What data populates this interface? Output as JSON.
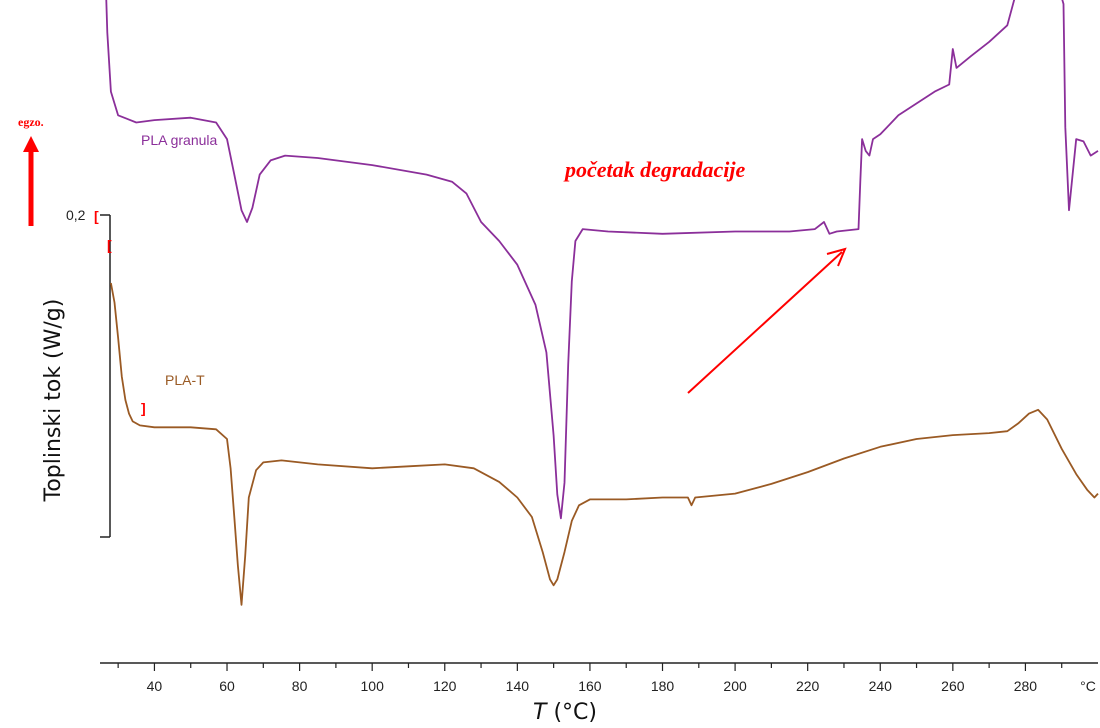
{
  "chart_data": {
    "type": "line",
    "xlabel_italic": "T",
    "xlabel_unit": " (°C)",
    "ylabel": "Toplinski tok (W/g)",
    "x_unit_tick": "°C",
    "xlim": [
      25,
      300
    ],
    "x_ticks": [
      40,
      60,
      80,
      100,
      120,
      140,
      160,
      180,
      200,
      220,
      240,
      260,
      280
    ],
    "scale_bar_label": "0,2",
    "exo_label": "egzo.",
    "annotation": "početak degradacije",
    "colors": {
      "PLA granula": "#8B2F9A",
      "PLA-T": "#9A5A24",
      "annotation": "#ff0000",
      "axis": "#222222"
    },
    "series": [
      {
        "name": "PLA granula",
        "points": [
          [
            25,
            1.7
          ],
          [
            26,
            1.3
          ],
          [
            27,
            0.8
          ],
          [
            28,
            0.55
          ],
          [
            30,
            0.45
          ],
          [
            35,
            0.42
          ],
          [
            40,
            0.43
          ],
          [
            50,
            0.44
          ],
          [
            57,
            0.42
          ],
          [
            60,
            0.35
          ],
          [
            62,
            0.2
          ],
          [
            64,
            0.05
          ],
          [
            65.5,
            0.0
          ],
          [
            67,
            0.06
          ],
          [
            69,
            0.2
          ],
          [
            72,
            0.26
          ],
          [
            76,
            0.28
          ],
          [
            85,
            0.27
          ],
          [
            100,
            0.24
          ],
          [
            115,
            0.2
          ],
          [
            122,
            0.17
          ],
          [
            126,
            0.12
          ],
          [
            130,
            0.0
          ],
          [
            135,
            -0.08
          ],
          [
            140,
            -0.18
          ],
          [
            145,
            -0.35
          ],
          [
            148,
            -0.55
          ],
          [
            150,
            -0.9
          ],
          [
            151,
            -1.15
          ],
          [
            152,
            -1.25
          ],
          [
            153,
            -1.1
          ],
          [
            154,
            -0.6
          ],
          [
            155,
            -0.25
          ],
          [
            156,
            -0.08
          ],
          [
            158,
            -0.03
          ],
          [
            165,
            -0.04
          ],
          [
            180,
            -0.05
          ],
          [
            200,
            -0.04
          ],
          [
            215,
            -0.04
          ],
          [
            222,
            -0.03
          ],
          [
            224.5,
            0.0
          ],
          [
            226,
            -0.05
          ],
          [
            228,
            -0.04
          ],
          [
            234,
            -0.03
          ],
          [
            234.5,
            0.17
          ],
          [
            235,
            0.35
          ],
          [
            236,
            0.3
          ],
          [
            237,
            0.28
          ],
          [
            238,
            0.35
          ],
          [
            240,
            0.37
          ],
          [
            245,
            0.45
          ],
          [
            255,
            0.55
          ],
          [
            259,
            0.58
          ],
          [
            260,
            0.73
          ],
          [
            261,
            0.65
          ],
          [
            265,
            0.7
          ],
          [
            270,
            0.76
          ],
          [
            275,
            0.83
          ],
          [
            278,
            1.0
          ],
          [
            281,
            1.18
          ],
          [
            283.5,
            1.22
          ],
          [
            286,
            1.18
          ],
          [
            289,
            1.0
          ],
          [
            290.5,
            0.92
          ],
          [
            291,
            0.4
          ],
          [
            292,
            0.05
          ],
          [
            293,
            0.2
          ],
          [
            294,
            0.35
          ],
          [
            296,
            0.34
          ],
          [
            298,
            0.28
          ],
          [
            300,
            0.3
          ]
        ]
      },
      {
        "name": "PLA-T",
        "points": [
          [
            28,
            1.0
          ],
          [
            29,
            0.9
          ],
          [
            30,
            0.72
          ],
          [
            31,
            0.52
          ],
          [
            32,
            0.4
          ],
          [
            33,
            0.33
          ],
          [
            34,
            0.29
          ],
          [
            36,
            0.27
          ],
          [
            40,
            0.26
          ],
          [
            50,
            0.26
          ],
          [
            57,
            0.25
          ],
          [
            60,
            0.2
          ],
          [
            61,
            0.05
          ],
          [
            62,
            -0.2
          ],
          [
            63,
            -0.45
          ],
          [
            64,
            -0.65
          ],
          [
            65,
            -0.4
          ],
          [
            66,
            -0.1
          ],
          [
            68,
            0.04
          ],
          [
            70,
            0.08
          ],
          [
            75,
            0.09
          ],
          [
            85,
            0.07
          ],
          [
            100,
            0.05
          ],
          [
            110,
            0.06
          ],
          [
            120,
            0.07
          ],
          [
            128,
            0.05
          ],
          [
            135,
            -0.02
          ],
          [
            140,
            -0.1
          ],
          [
            144,
            -0.2
          ],
          [
            147,
            -0.38
          ],
          [
            149,
            -0.52
          ],
          [
            150,
            -0.55
          ],
          [
            151,
            -0.52
          ],
          [
            153,
            -0.38
          ],
          [
            155,
            -0.22
          ],
          [
            157,
            -0.14
          ],
          [
            160,
            -0.11
          ],
          [
            170,
            -0.11
          ],
          [
            180,
            -0.1
          ],
          [
            187,
            -0.1
          ],
          [
            188,
            -0.14
          ],
          [
            189,
            -0.1
          ],
          [
            200,
            -0.08
          ],
          [
            210,
            -0.03
          ],
          [
            220,
            0.03
          ],
          [
            230,
            0.1
          ],
          [
            240,
            0.16
          ],
          [
            250,
            0.2
          ],
          [
            260,
            0.22
          ],
          [
            270,
            0.23
          ],
          [
            275,
            0.24
          ],
          [
            278,
            0.28
          ],
          [
            281,
            0.33
          ],
          [
            283.5,
            0.35
          ],
          [
            286,
            0.3
          ],
          [
            290,
            0.15
          ],
          [
            294,
            0.02
          ],
          [
            297,
            -0.06
          ],
          [
            299,
            -0.1
          ],
          [
            300,
            -0.08
          ]
        ]
      }
    ]
  }
}
